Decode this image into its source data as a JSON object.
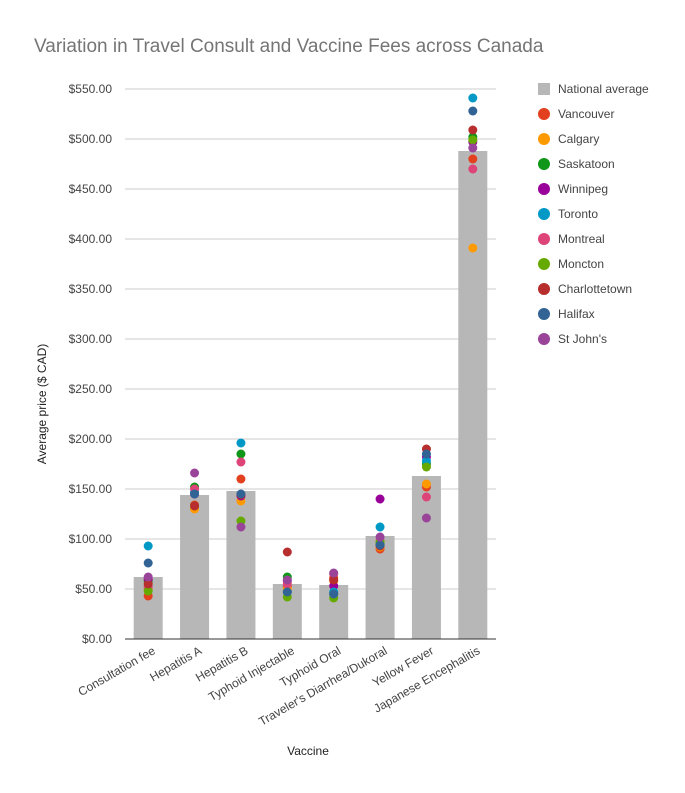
{
  "chart_data": {
    "type": "bar",
    "title": "Variation in Travel Consult and Vaccine Fees across Canada",
    "xlabel": "Vaccine",
    "ylabel": "Average price ($ CAD)",
    "ylim": [
      0,
      550
    ],
    "yticks": [
      0,
      50,
      100,
      150,
      200,
      250,
      300,
      350,
      400,
      450,
      500,
      550
    ],
    "ytick_labels": [
      "$0.00",
      "$50.00",
      "$100.00",
      "$150.00",
      "$200.00",
      "$250.00",
      "$300.00",
      "$350.00",
      "$400.00",
      "$450.00",
      "$500.00",
      "$550.00"
    ],
    "grid": true,
    "legend_position": "right",
    "categories": [
      "Consultation fee",
      "Hepatitis A",
      "Hepatitis B",
      "Typhoid Injectable",
      "Typhoid Oral",
      "Traveler's Diarrhea/Dukoral",
      "Yellow Fever",
      "Japanese Encephalitis"
    ],
    "bar_series": {
      "name": "National average",
      "color": "#b7b7b7",
      "values": [
        62,
        144,
        148,
        55,
        54,
        103,
        163,
        488
      ]
    },
    "point_series": [
      {
        "name": "Vancouver",
        "color": "#e2401e",
        "values": [
          43,
          134,
          160,
          52,
          61,
          90,
          152,
          480
        ]
      },
      {
        "name": "Calgary",
        "color": "#ff9900",
        "values": [
          50,
          130,
          138,
          50,
          58,
          92,
          155,
          391
        ]
      },
      {
        "name": "Saskatoon",
        "color": "#109618",
        "values": [
          58,
          152,
          185,
          62,
          45,
          95,
          175,
          502
        ]
      },
      {
        "name": "Winnipeg",
        "color": "#990099",
        "values": [
          60,
          145,
          143,
          58,
          53,
          140,
          182,
          497
        ]
      },
      {
        "name": "Toronto",
        "color": "#0099c6",
        "values": [
          93,
          147,
          196,
          47,
          47,
          112,
          178,
          541
        ]
      },
      {
        "name": "Montreal",
        "color": "#dd4477",
        "values": [
          52,
          150,
          177,
          55,
          65,
          98,
          142,
          470
        ]
      },
      {
        "name": "Moncton",
        "color": "#66aa00",
        "values": [
          48,
          133,
          118,
          42,
          41,
          97,
          172,
          499
        ]
      },
      {
        "name": "Charlottetown",
        "color": "#b82e2e",
        "values": [
          55,
          133,
          144,
          87,
          59,
          93,
          190,
          509
        ]
      },
      {
        "name": "Halifax",
        "color": "#316395",
        "values": [
          76,
          145,
          145,
          47,
          45,
          94,
          185,
          528
        ]
      },
      {
        "name": "St John's",
        "color": "#994499",
        "values": [
          62,
          166,
          112,
          59,
          66,
          102,
          121,
          491
        ]
      }
    ]
  }
}
